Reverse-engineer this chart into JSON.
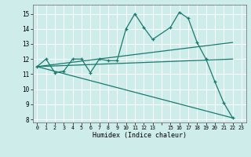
{
  "xlabel": "Humidex (Indice chaleur)",
  "bg_color": "#cdecea",
  "grid_color": "#ffffff",
  "line_color": "#1a7a6e",
  "xlim": [
    -0.5,
    23.5
  ],
  "ylim": [
    7.8,
    15.6
  ],
  "yticks": [
    8,
    9,
    10,
    11,
    12,
    13,
    14,
    15
  ],
  "xtick_positions": [
    0,
    1,
    2,
    3,
    4,
    5,
    6,
    7,
    8,
    9,
    10,
    11,
    12,
    13,
    14,
    15,
    16,
    17,
    18,
    19,
    20,
    21,
    22,
    23
  ],
  "xtick_labels": [
    "0",
    "1",
    "2",
    "3",
    "4",
    "5",
    "6",
    "7",
    "8",
    "9",
    "10",
    "11",
    "12",
    "13",
    "",
    "15",
    "16",
    "17",
    "18",
    "19",
    "20",
    "21",
    "22",
    "23"
  ],
  "series": [
    {
      "x": [
        0,
        1,
        2,
        3,
        4,
        5,
        6,
        7,
        8,
        9,
        10,
        11,
        12,
        13,
        15,
        16,
        17,
        18,
        19,
        20,
        21,
        22
      ],
      "y": [
        11.5,
        12.0,
        11.1,
        11.2,
        12.0,
        12.0,
        11.1,
        12.0,
        11.9,
        11.9,
        14.0,
        15.0,
        14.1,
        13.3,
        14.1,
        15.1,
        14.7,
        13.1,
        12.0,
        10.5,
        9.1,
        8.1
      ],
      "marker": "+"
    },
    {
      "x": [
        0,
        22
      ],
      "y": [
        11.5,
        13.1
      ],
      "marker": null
    },
    {
      "x": [
        0,
        22
      ],
      "y": [
        11.5,
        12.0
      ],
      "marker": null
    },
    {
      "x": [
        0,
        22
      ],
      "y": [
        11.5,
        8.1
      ],
      "marker": null
    }
  ]
}
